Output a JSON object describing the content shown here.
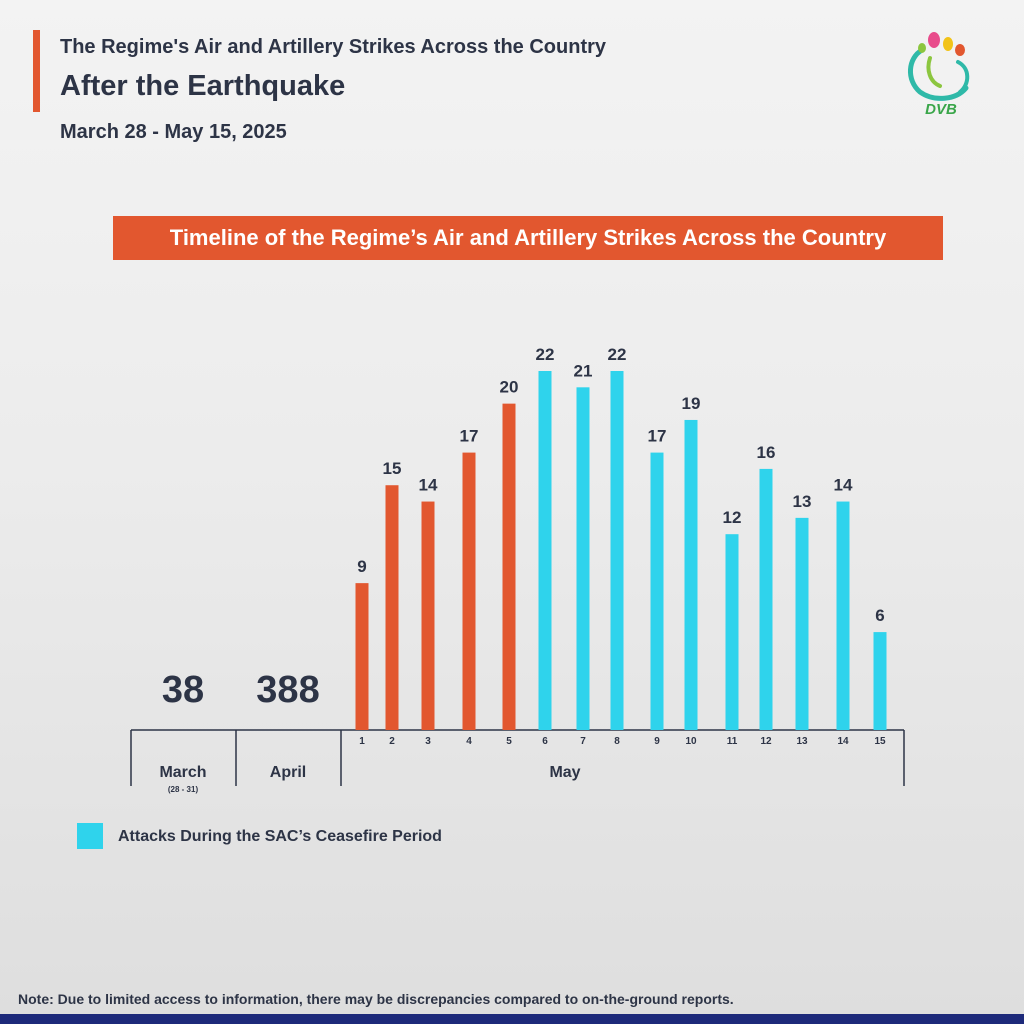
{
  "header": {
    "kicker": "The Regime's Air and Artillery Strikes Across the Country",
    "headline": "After the Earthquake",
    "dates": "March 28 - May 15, 2025",
    "logo_text": "DVB"
  },
  "banner": {
    "title": "Timeline of the Regime’s Air and Artillery Strikes Across the Country"
  },
  "chart_data": {
    "type": "bar",
    "title": "Timeline of the Regime’s Air and Artillery Strikes Across the Country",
    "totals": [
      {
        "label": "March",
        "sublabel": "(28 - 31)",
        "value": 38
      },
      {
        "label": "April",
        "sublabel": "",
        "value": 388
      }
    ],
    "group_label": "May",
    "categories": [
      "1",
      "2",
      "3",
      "4",
      "5",
      "6",
      "7",
      "8",
      "9",
      "10",
      "11",
      "12",
      "13",
      "14",
      "15"
    ],
    "values": [
      9,
      15,
      14,
      17,
      20,
      22,
      21,
      22,
      17,
      19,
      12,
      16,
      13,
      14,
      6
    ],
    "ceasefire": [
      false,
      false,
      false,
      false,
      false,
      true,
      true,
      true,
      true,
      true,
      true,
      true,
      true,
      true,
      true
    ],
    "colors": {
      "normal": "#e2572f",
      "ceasefire": "#2fd3ec",
      "text": "#2d3446",
      "axis": "#2d3446"
    },
    "ylim": [
      0,
      22
    ],
    "legend": {
      "label": "Attacks During the SAC’s Ceasefire Period",
      "position": "bottom-left"
    }
  },
  "note": "Note: Due to limited access to information, there may be discrepancies compared to on-the-ground reports."
}
